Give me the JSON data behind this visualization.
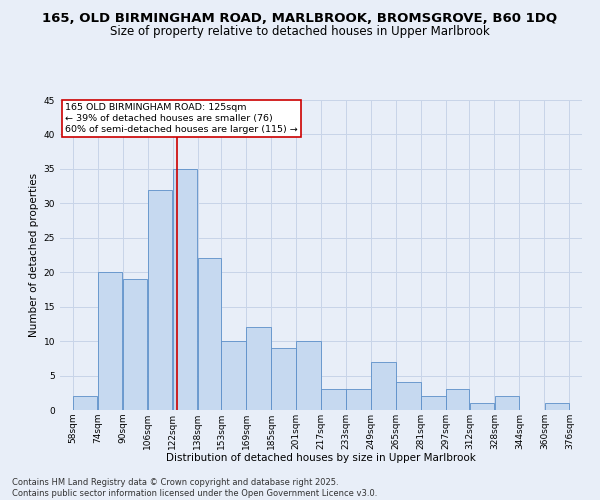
{
  "title_line1": "165, OLD BIRMINGHAM ROAD, MARLBROOK, BROMSGROVE, B60 1DQ",
  "title_line2": "Size of property relative to detached houses in Upper Marlbrook",
  "xlabel": "Distribution of detached houses by size in Upper Marlbrook",
  "ylabel": "Number of detached properties",
  "bins": [
    58,
    74,
    90,
    106,
    122,
    138,
    153,
    169,
    185,
    201,
    217,
    233,
    249,
    265,
    281,
    297,
    312,
    328,
    344,
    360,
    376
  ],
  "bin_labels": [
    "58sqm",
    "74sqm",
    "90sqm",
    "106sqm",
    "122sqm",
    "138sqm",
    "153sqm",
    "169sqm",
    "185sqm",
    "201sqm",
    "217sqm",
    "233sqm",
    "249sqm",
    "265sqm",
    "281sqm",
    "297sqm",
    "312sqm",
    "328sqm",
    "344sqm",
    "360sqm",
    "376sqm"
  ],
  "values": [
    2,
    20,
    19,
    32,
    35,
    22,
    10,
    12,
    9,
    10,
    3,
    3,
    7,
    4,
    2,
    3,
    1,
    2,
    0,
    1,
    0
  ],
  "bar_color": "#c6d9f0",
  "bar_edge_color": "#5b8fc9",
  "grid_color": "#c8d4e8",
  "bg_color": "#e8eef8",
  "vline_x": 125,
  "vline_color": "#cc0000",
  "annotation_text": "165 OLD BIRMINGHAM ROAD: 125sqm\n← 39% of detached houses are smaller (76)\n60% of semi-detached houses are larger (115) →",
  "annotation_box_color": "#ffffff",
  "annotation_box_edge": "#cc0000",
  "ylim": [
    0,
    45
  ],
  "yticks": [
    0,
    5,
    10,
    15,
    20,
    25,
    30,
    35,
    40,
    45
  ],
  "footer": "Contains HM Land Registry data © Crown copyright and database right 2025.\nContains public sector information licensed under the Open Government Licence v3.0.",
  "title_fontsize": 9.5,
  "subtitle_fontsize": 8.5,
  "axis_label_fontsize": 7.5,
  "tick_fontsize": 6.5,
  "annotation_fontsize": 6.8,
  "footer_fontsize": 6.0
}
